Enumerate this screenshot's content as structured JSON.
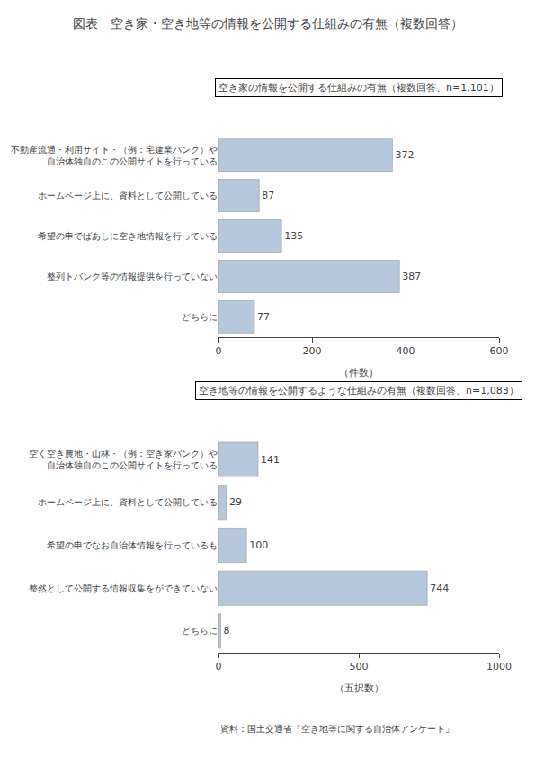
{
  "title": "図表　空き家・空き地等の情報を公開する仕組みの有無（複数回答）",
  "source": "資料：国土交通省「空き地等に関する自治体アンケート」",
  "chart_data": [
    {
      "type": "bar",
      "orientation": "horizontal",
      "subtitle": "空き家の情報を公開する仕組みの有無（複数回答、n=1,101）",
      "categories": [
        "不動産流通・利用サイト・（例：宅建業バンク）や\n自治体独自のこの公開サイトを行っている",
        "ホームページ上に、資料として公開している",
        "希望の申でばあしに空き地情報を行っている",
        "整列トバンク等の情報提供を行っていない",
        "どちらに"
      ],
      "values": [
        372,
        87,
        135,
        387,
        77
      ],
      "color": "#b8c8dc",
      "xlim": [
        0,
        600
      ],
      "xticks": [
        0,
        200,
        400,
        600
      ],
      "xlabel": "（件数）",
      "data_labels": true,
      "grid": false
    },
    {
      "type": "bar",
      "orientation": "horizontal",
      "subtitle": "空き地等の情報を公開するような仕組みの有無（複数回答、n=1,083）",
      "categories": [
        "空く空き農地・山林・（例：空き家バンク）や\n自治体独自のこの公開サイトを行っている",
        "ホームページ上に、資料として公開している",
        "希望の申でなお自治体情報を行っているも",
        "整然として公開する情報収集をができていない",
        "どちらに"
      ],
      "values": [
        141,
        29,
        100,
        744,
        8
      ],
      "color": "#b8c8dc",
      "xlim": [
        0,
        1000
      ],
      "xticks": [
        0,
        500,
        1000
      ],
      "xlabel": "（五択数）",
      "data_labels": true,
      "grid": false
    }
  ]
}
